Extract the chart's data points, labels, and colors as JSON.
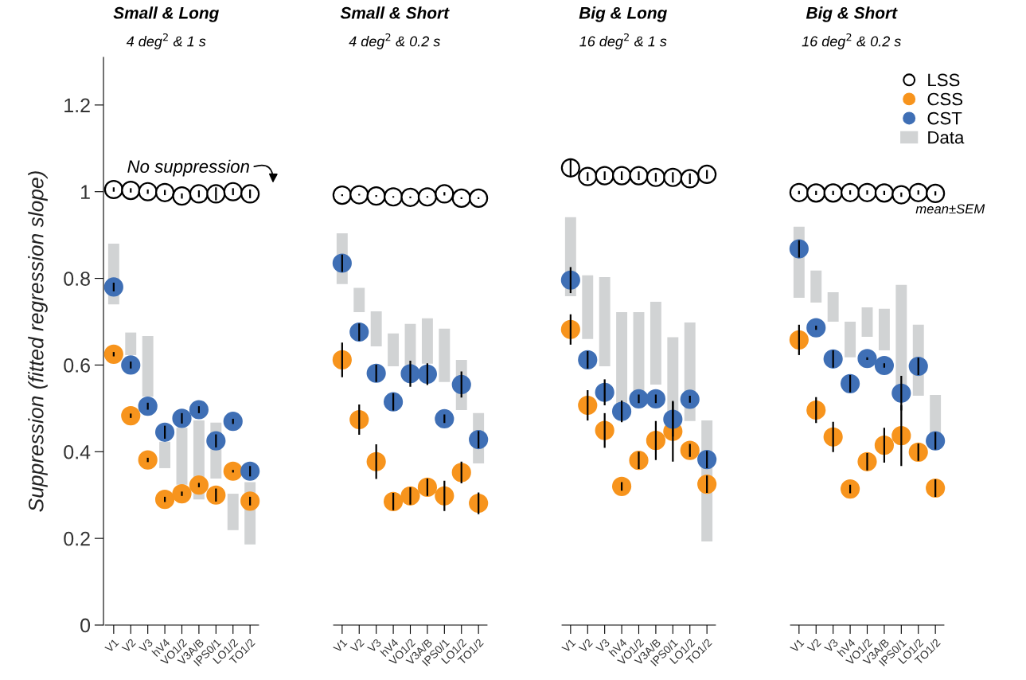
{
  "chart_data": [
    {
      "type": "scatter",
      "title": "Small & Long",
      "subtitle": "4 deg$^{2}$ & 1 s",
      "ylabel": "Suppression (fitted regression slope)",
      "categories": [
        "V1",
        "V2",
        "V3",
        "hV4",
        "VO1/2",
        "V3A/B",
        "IPS0/1",
        "LO1/2",
        "TO1/2"
      ],
      "ylim": [
        0,
        1.31
      ],
      "yticks": [
        0,
        0.2,
        0.4,
        0.6,
        0.8,
        1,
        1.2
      ],
      "marker": "circle",
      "annotations": [
        "No suppression"
      ],
      "series": [
        {
          "type": "bar",
          "color": "#d1d3d4",
          "base": [
            0.74,
            0.623,
            0.527,
            0.362,
            0.324,
            0.29,
            0.338,
            0.219,
            0.186
          ],
          "values": [
            0.14,
            0.052,
            0.14,
            0.061,
            0.131,
            0.182,
            0.129,
            0.084,
            0.144
          ]
        },
        {
          "color": "#ffffff",
          "values": [
            1.005,
            1.003,
            1.0,
            0.998,
            0.99,
            0.995,
            0.995,
            1.0,
            0.995
          ],
          "errors": [
            0.005,
            0.005,
            0.005,
            0.006,
            0.006,
            0.008,
            0.015,
            0.008,
            0.01
          ]
        },
        {
          "color": "#f7941d",
          "values": [
            0.625,
            0.483,
            0.381,
            0.29,
            0.303,
            0.323,
            0.3,
            0.355,
            0.286
          ],
          "errors": [
            0.005,
            0.005,
            0.005,
            0.006,
            0.005,
            0.005,
            0.015,
            0.003,
            0.01
          ]
        },
        {
          "color": "#3f6fb5",
          "values": [
            0.78,
            0.6,
            0.505,
            0.445,
            0.477,
            0.497,
            0.425,
            0.47,
            0.355
          ],
          "errors": [
            0.01,
            0.008,
            0.008,
            0.015,
            0.012,
            0.008,
            0.015,
            0.006,
            0.012
          ]
        }
      ]
    },
    {
      "type": "scatter",
      "title": "Small & Short",
      "subtitle": "4 deg$^{2}$ & 0.2 s",
      "categories": [
        "V1",
        "V2",
        "V3",
        "hV4",
        "VO1/2",
        "V3A/B",
        "IPS0/1",
        "LO1/2",
        "TO1/2"
      ],
      "ylim": [
        0,
        1.2
      ],
      "yticks": [
        0,
        0.2,
        0.4,
        0.6,
        0.8,
        1,
        1.2
      ],
      "tick_labels": "x",
      "marker": "circle",
      "series": [
        {
          "type": "bar",
          "color": "#d1d3d4",
          "base": [
            0.787,
            0.722,
            0.643,
            0.597,
            0.6,
            0.603,
            0.561,
            0.496,
            0.373
          ],
          "values": [
            0.117,
            0.056,
            0.081,
            0.076,
            0.095,
            0.105,
            0.123,
            0.116,
            0.116
          ]
        },
        {
          "color": "#ffffff",
          "values": [
            0.992,
            0.993,
            0.99,
            0.988,
            0.987,
            0.988,
            0.995,
            0.985,
            0.985
          ],
          "errors": [
            0.002,
            0.002,
            0.002,
            0.002,
            0.002,
            0.002,
            0.004,
            0.002,
            0.002
          ]
        },
        {
          "color": "#f7941d",
          "values": [
            0.612,
            0.474,
            0.377,
            0.285,
            0.298,
            0.318,
            0.298,
            0.352,
            0.281
          ],
          "errors": [
            0.04,
            0.035,
            0.04,
            0.02,
            0.02,
            0.02,
            0.035,
            0.025,
            0.025
          ]
        },
        {
          "color": "#3f6fb5",
          "values": [
            0.835,
            0.676,
            0.581,
            0.515,
            0.58,
            0.579,
            0.476,
            0.555,
            0.428
          ],
          "errors": [
            0.02,
            0.02,
            0.02,
            0.02,
            0.03,
            0.025,
            0.01,
            0.03,
            0.02
          ]
        }
      ]
    },
    {
      "type": "scatter",
      "title": "Big & Long",
      "subtitle": "16 deg$^{2}$ & 1 s",
      "categories": [
        "V1",
        "V2",
        "V3",
        "hV4",
        "VO1/2",
        "V3A/B",
        "IPS0/1",
        "LO1/2",
        "TO1/2"
      ],
      "ylim": [
        0,
        1.2
      ],
      "yticks": [
        0,
        0.2,
        0.4,
        0.6,
        0.8,
        1,
        1.2
      ],
      "tick_labels": "x",
      "marker": "circle",
      "series": [
        {
          "type": "bar",
          "color": "#d1d3d4",
          "base": [
            0.759,
            0.66,
            0.597,
            0.511,
            0.52,
            0.555,
            0.48,
            0.471,
            0.193
          ],
          "values": [
            0.182,
            0.147,
            0.206,
            0.211,
            0.202,
            0.191,
            0.184,
            0.227,
            0.279
          ]
        },
        {
          "color": "#ffffff",
          "values": [
            1.055,
            1.035,
            1.037,
            1.037,
            1.037,
            1.033,
            1.033,
            1.03,
            1.04
          ],
          "errors": [
            0.02,
            0.01,
            0.01,
            0.01,
            0.01,
            0.01,
            0.012,
            0.012,
            0.01
          ]
        },
        {
          "color": "#f7941d",
          "values": [
            0.682,
            0.507,
            0.449,
            0.32,
            0.38,
            0.426,
            0.447,
            0.403,
            0.325
          ],
          "errors": [
            0.035,
            0.035,
            0.04,
            0.01,
            0.02,
            0.045,
            0.07,
            0.015,
            0.02
          ]
        },
        {
          "color": "#3f6fb5",
          "values": [
            0.796,
            0.612,
            0.537,
            0.493,
            0.522,
            0.522,
            0.475,
            0.521,
            0.382
          ],
          "errors": [
            0.03,
            0.02,
            0.03,
            0.025,
            0.01,
            0.01,
            0.04,
            0.008,
            0.02
          ]
        }
      ]
    },
    {
      "type": "scatter",
      "title": "Big & Short",
      "subtitle": "16 deg$^{2}$ & 0.2 s",
      "categories": [
        "V1",
        "V2",
        "V3",
        "hV4",
        "VO1/2",
        "V3A/B",
        "IPS0/1",
        "LO1/2",
        "TO1/2"
      ],
      "ylim": [
        0,
        1.2
      ],
      "yticks": [
        0,
        0.2,
        0.4,
        0.6,
        0.8,
        1,
        1.2
      ],
      "tick_labels": "x",
      "marker": "circle",
      "legend": "top right",
      "annotations": [
        "mean±SEM"
      ],
      "series": [
        {
          "type": "bar",
          "name": "Data",
          "color": "#d1d3d4",
          "base": [
            0.755,
            0.744,
            0.7,
            0.618,
            0.665,
            0.634,
            0.54,
            0.529,
            0.44
          ],
          "values": [
            0.164,
            0.074,
            0.068,
            0.082,
            0.068,
            0.096,
            0.245,
            0.164,
            0.091
          ]
        },
        {
          "name": "LSS",
          "color": "#ffffff",
          "values": [
            0.998,
            0.997,
            0.997,
            0.998,
            0.998,
            0.997,
            0.993,
            0.998,
            0.996
          ],
          "errors": [
            0.004,
            0.005,
            0.005,
            0.005,
            0.005,
            0.005,
            0.005,
            0.005,
            0.005
          ]
        },
        {
          "name": "CSS",
          "color": "#f7941d",
          "values": [
            0.658,
            0.496,
            0.434,
            0.314,
            0.377,
            0.415,
            0.437,
            0.399,
            0.316
          ],
          "errors": [
            0.035,
            0.03,
            0.035,
            0.01,
            0.02,
            0.04,
            0.07,
            0.02,
            0.02
          ]
        },
        {
          "name": "CST",
          "color": "#3f6fb5",
          "values": [
            0.868,
            0.686,
            0.614,
            0.557,
            0.615,
            0.599,
            0.535,
            0.597,
            0.425
          ],
          "errors": [
            0.02,
            0.005,
            0.02,
            0.02,
            0.003,
            0.005,
            0.04,
            0.02,
            0.02
          ]
        }
      ]
    }
  ]
}
